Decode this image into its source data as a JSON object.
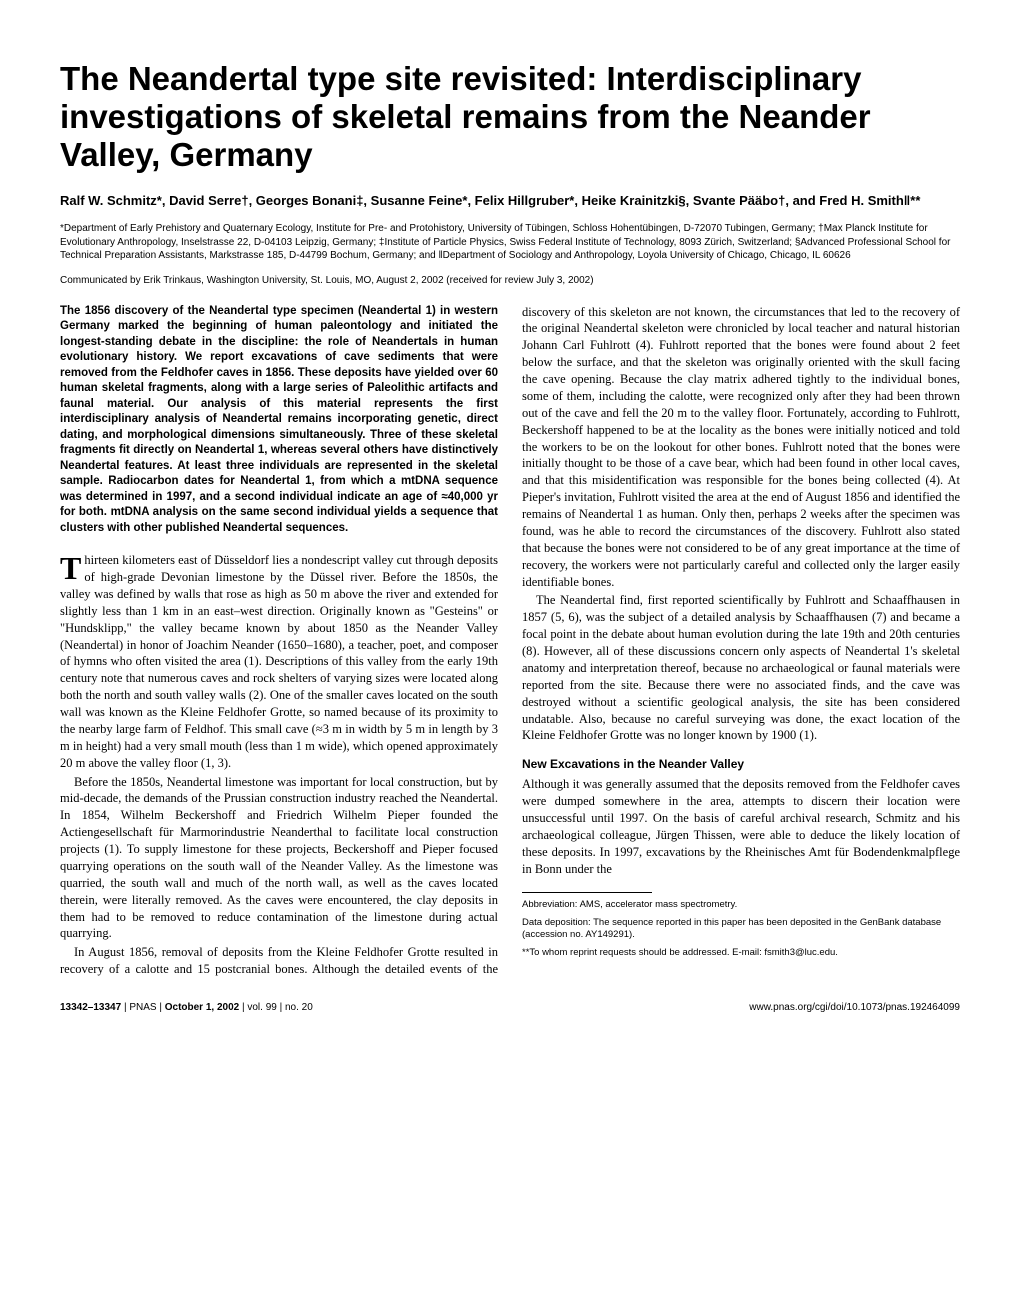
{
  "title": "The Neandertal type site revisited: Interdisciplinary investigations of skeletal remains from the Neander Valley, Germany",
  "authors": "Ralf W. Schmitz*, David Serre†, Georges Bonani‡, Susanne Feine*, Felix Hillgruber*, Heike Krainitzki§, Svante Pääbo†, and Fred H. Smith‖**",
  "affiliations": "*Department of Early Prehistory and Quaternary Ecology, Institute for Pre- and Protohistory, University of Tübingen, Schloss Hohentübingen, D-72070 Tubingen, Germany; †Max Planck Institute for Evolutionary Anthropology, Inselstrasse 22, D-04103 Leipzig, Germany; ‡Institute of Particle Physics, Swiss Federal Institute of Technology, 8093 Zürich, Switzerland; §Advanced Professional School for Technical Preparation Assistants, Markstrasse 185, D-44799 Bochum, Germany; and ‖Department of Sociology and Anthropology, Loyola University of Chicago, Chicago, IL 60626",
  "communicated": "Communicated by Erik Trinkaus, Washington University, St. Louis, MO, August 2, 2002 (received for review July 3, 2002)",
  "abstract": "The 1856 discovery of the Neandertal type specimen (Neandertal 1) in western Germany marked the beginning of human paleontology and initiated the longest-standing debate in the discipline: the role of Neandertals in human evolutionary history. We report excavations of cave sediments that were removed from the Feldhofer caves in 1856. These deposits have yielded over 60 human skeletal fragments, along with a large series of Paleolithic artifacts and faunal material. Our analysis of this material represents the first interdisciplinary analysis of Neandertal remains incorporating genetic, direct dating, and morphological dimensions simultaneously. Three of these skeletal fragments fit directly on Neandertal 1, whereas several others have distinctively Neandertal features. At least three individuals are represented in the skeletal sample. Radiocarbon dates for Neandertal 1, from which a mtDNA sequence was determined in 1997, and a second individual indicate an age of ≈40,000 yr for both. mtDNA analysis on the same second individual yields a sequence that clusters with other published Neandertal sequences.",
  "body": {
    "dropcap": "T",
    "para1_rest": "hirteen kilometers east of Düsseldorf lies a nondescript valley cut through deposits of high-grade Devonian limestone by the Düssel river. Before the 1850s, the valley was defined by walls that rose as high as 50 m above the river and extended for slightly less than 1 km in an east–west direction. Originally known as \"Gesteins\" or \"Hundsklipp,\" the valley became known by about 1850 as the Neander Valley (Neandertal) in honor of Joachim Neander (1650–1680), a teacher, poet, and composer of hymns who often visited the area (1). Descriptions of this valley from the early 19th century note that numerous caves and rock shelters of varying sizes were located along both the north and south valley walls (2). One of the smaller caves located on the south wall was known as the Kleine Feldhofer Grotte, so named because of its proximity to the nearby large farm of Feldhof. This small cave (≈3 m in width by 5 m in length by 3 m in height) had a very small mouth (less than 1 m wide), which opened approximately 20 m above the valley floor (1, 3).",
    "para2": "Before the 1850s, Neandertal limestone was important for local construction, but by mid-decade, the demands of the Prussian construction industry reached the Neandertal. In 1854, Wilhelm Beckershoff and Friedrich Wilhelm Pieper founded the Actiengesellschaft für Marmorindustrie Neanderthal to facilitate local construction projects (1). To supply limestone for these projects, Beckershoff and Pieper focused quarrying operations on the south wall of the Neander Valley. As the limestone was quarried, the south wall and much of the north wall, as well as the caves located therein, were literally removed. As the caves were encountered, the clay deposits in them had to be removed to reduce contamination of the limestone during actual quarrying.",
    "para3": "In August 1856, removal of deposits from the Kleine Feldhofer Grotte resulted in recovery of a calotte and 15 postcranial bones. Although the detailed events of the discovery of this skeleton are not known, the circumstances that led to the recovery of the original Neandertal skeleton were chronicled by local teacher and natural historian Johann Carl Fuhlrott (4). Fuhlrott reported that the bones were found about 2 feet below the surface, and that the skeleton was originally oriented with the skull facing the cave opening. Because the clay matrix adhered tightly to the individual bones, some of them, including the calotte, were recognized only after they had been thrown out of the cave and fell the 20 m to the valley floor. Fortunately, according to Fuhlrott, Beckershoff happened to be at the locality as the bones were initially noticed and told the workers to be on the lookout for other bones. Fuhlrott noted that the bones were initially thought to be those of a cave bear, which had been found in other local caves, and that this misidentification was responsible for the bones being collected (4). At Pieper's invitation, Fuhlrott visited the area at the end of August 1856 and identified the remains of Neandertal 1 as human. Only then, perhaps 2 weeks after the specimen was found, was he able to record the circumstances of the discovery. Fuhlrott also stated that because the bones were not considered to be of any great importance at the time of recovery, the workers were not particularly careful and collected only the larger easily identifiable bones.",
    "para4": "The Neandertal find, first reported scientifically by Fuhlrott and Schaaffhausen in 1857 (5, 6), was the subject of a detailed analysis by Schaaffhausen (7) and became a focal point in the debate about human evolution during the late 19th and 20th centuries (8). However, all of these discussions concern only aspects of Neandertal 1's skeletal anatomy and interpretation thereof, because no archaeological or faunal materials were reported from the site. Because there were no associated finds, and the cave was destroyed without a scientific geological analysis, the site has been considered undatable. Also, because no careful surveying was done, the exact location of the Kleine Feldhofer Grotte was no longer known by 1900 (1).",
    "section_heading": "New Excavations in the Neander Valley",
    "para5": "Although it was generally assumed that the deposits removed from the Feldhofer caves were dumped somewhere in the area, attempts to discern their location were unsuccessful until 1997. On the basis of careful archival research, Schmitz and his archaeological colleague, Jürgen Thissen, were able to deduce the likely location of these deposits. In 1997, excavations by the Rheinisches Amt für Bodendenkmalpflege in Bonn under the"
  },
  "footnotes": {
    "f1": "Abbreviation: AMS, accelerator mass spectrometry.",
    "f2": "Data deposition: The sequence reported in this paper has been deposited in the GenBank database (accession no. AY149291).",
    "f3": "**To whom reprint requests should be addressed. E-mail: fsmith3@luc.edu."
  },
  "footer": {
    "left_pages": "13342–13347",
    "left_sep1": " | ",
    "left_pnas": "PNAS",
    "left_sep2": " | ",
    "left_date": "October 1, 2002",
    "left_sep3": " | ",
    "left_vol": "vol. 99",
    "left_sep4": " | ",
    "left_no": "no. 20",
    "right": "www.pnas.org/cgi/doi/10.1073/pnas.192464099"
  }
}
